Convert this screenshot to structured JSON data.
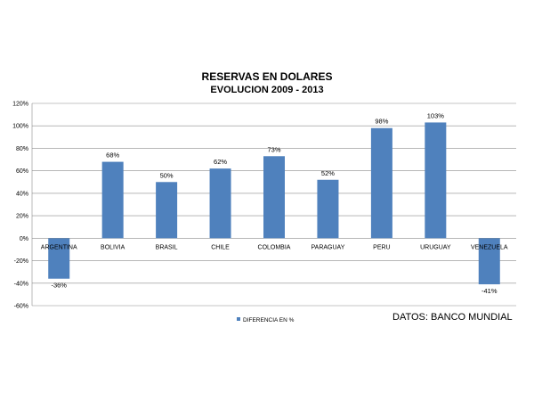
{
  "chart_data": {
    "type": "bar",
    "title": "RESERVAS EN DOLARES",
    "subtitle": "EVOLUCION 2009 - 2013",
    "categories": [
      "ARGENTINA",
      "BOLIVIA",
      "BRASIL",
      "CHILE",
      "COLOMBIA",
      "PARAGUAY",
      "PERU",
      "URUGUAY",
      "VENEZUELA"
    ],
    "series": [
      {
        "name": "DIFERENCIA EN %",
        "values": [
          -36,
          68,
          50,
          62,
          73,
          52,
          98,
          103,
          -41
        ],
        "labels": [
          "-36%",
          "68%",
          "50%",
          "62%",
          "73%",
          "52%",
          "98%",
          "103%",
          "-41%"
        ],
        "color": "#4F81BD"
      }
    ],
    "yticks": [
      "120%",
      "100%",
      "80%",
      "60%",
      "40%",
      "20%",
      "0%",
      "-20%",
      "-40%",
      "-60%"
    ],
    "ylim": [
      -60,
      120
    ],
    "grid": true,
    "legend": "bottom"
  },
  "source_note": "DATOS: BANCO MUNDIAL"
}
